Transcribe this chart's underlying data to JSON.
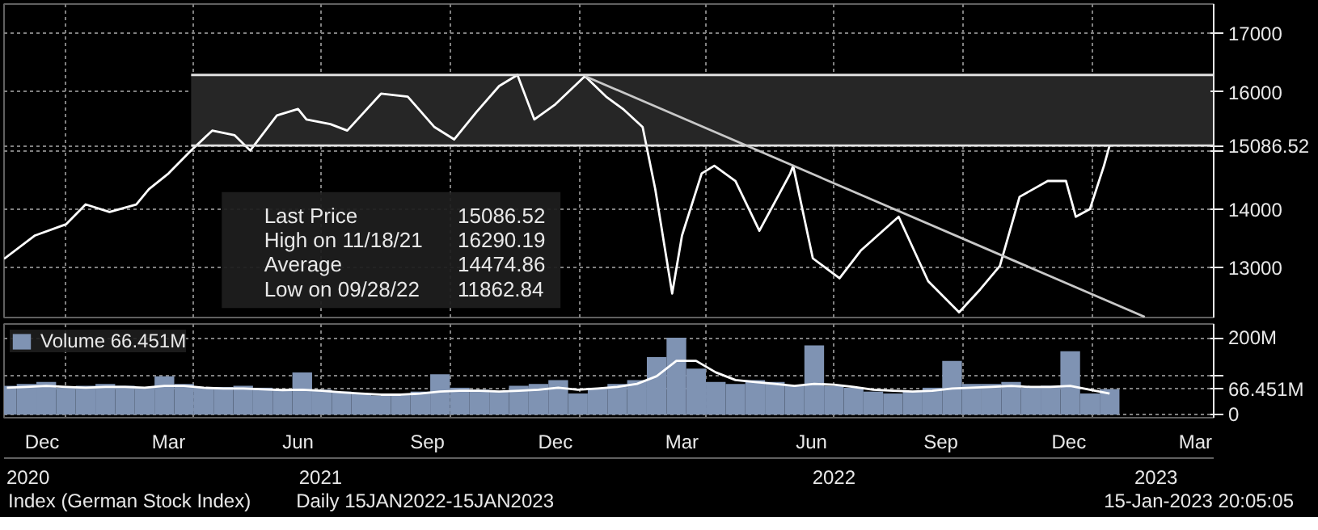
{
  "chart_data": [
    {
      "type": "line",
      "xlim": [
        "2020-11-18",
        "2023-03-28"
      ],
      "ylim": [
        12150,
        17500
      ],
      "yticks": [
        13000,
        14000,
        {
          "value": 15000,
          "label": null
        },
        {
          "value": 15086.52,
          "label": "15086.52"
        },
        16000,
        17000
      ],
      "xticks": [
        {
          "value": "2021-01-01",
          "label": null
        },
        {
          "value": "2021-04-01",
          "label": null
        },
        {
          "value": "2021-07-01",
          "label": null
        },
        {
          "value": "2021-10-01",
          "label": null
        },
        {
          "value": "2022-01-01",
          "label": null
        },
        {
          "value": "2022-04-01",
          "label": null
        },
        {
          "value": "2022-07-01",
          "label": null
        },
        {
          "value": "2022-10-01",
          "label": null
        },
        {
          "value": "2023-01-01",
          "label": null
        }
      ],
      "tick_labels": "y",
      "grid": true,
      "series": [
        {
          "color": "#ffffff",
          "x": [
            "2020-11-18",
            "2020-12-10",
            "2021-01-01",
            "2021-01-15",
            "2021-02-01",
            "2021-02-20",
            "2021-03-01",
            "2021-03-15",
            "2021-03-31",
            "2021-04-15",
            "2021-05-01",
            "2021-05-12",
            "2021-05-31",
            "2021-06-15",
            "2021-06-21",
            "2021-07-08",
            "2021-07-20",
            "2021-08-13",
            "2021-09-01",
            "2021-09-20",
            "2021-10-04",
            "2021-10-20",
            "2021-11-05",
            "2021-11-18",
            "2021-11-30",
            "2021-12-15",
            "2022-01-05",
            "2022-01-20",
            "2022-02-01",
            "2022-02-15",
            "2022-02-24",
            "2022-03-08",
            "2022-03-15",
            "2022-03-29",
            "2022-04-07",
            "2022-04-22",
            "2022-05-09",
            "2022-05-31",
            "2022-06-02",
            "2022-06-16",
            "2022-07-05",
            "2022-07-20",
            "2022-08-16",
            "2022-09-06",
            "2022-09-28",
            "2022-10-13",
            "2022-10-27",
            "2022-11-10",
            "2022-11-30",
            "2022-12-13",
            "2022-12-20",
            "2022-12-30",
            "2023-01-09",
            "2023-01-13"
          ],
          "values": [
            13150,
            13550,
            13740,
            14080,
            13950,
            14080,
            14340,
            14610,
            15000,
            15340,
            15260,
            15000,
            15600,
            15710,
            15530,
            15450,
            15340,
            15970,
            15920,
            15400,
            15190,
            15660,
            16100,
            16290,
            15530,
            15790,
            16270,
            15920,
            15710,
            15400,
            14340,
            12560,
            13550,
            14610,
            14740,
            14480,
            13630,
            14610,
            14740,
            13160,
            12820,
            13290,
            13870,
            12770,
            12240,
            12630,
            13030,
            14210,
            14480,
            14480,
            13870,
            14000,
            14740,
            15086.52
          ]
        },
        {
          "color": "#e0e0e0",
          "x": [
            "2021-03-31",
            "2023-03-28"
          ],
          "values": [
            16290.19,
            16290.19
          ],
          "lower": [
            15086.52,
            15086.52
          ],
          "upper": [
            16290.19,
            16290.19
          ]
        },
        {
          "color": "#e0e0e0",
          "x": [
            "2021-03-31",
            "2023-03-28"
          ],
          "values": [
            15086.52,
            15086.52
          ]
        },
        {
          "color": "#c8c8c8",
          "x": [
            "2022-01-05",
            "2023-02-07"
          ],
          "values": [
            16270,
            12160
          ]
        }
      ],
      "annotations": [
        "Last Price",
        "15086.52",
        "High on 11/18/21",
        "16290.19",
        "Average",
        "14474.86",
        "Low on 09/28/22",
        "11862.84"
      ]
    },
    {
      "type": "bar",
      "xlim": [
        "2020-11-18",
        "2023-03-28"
      ],
      "ylim": [
        -8,
        236
      ],
      "yticks": [
        {
          "value": 0,
          "label": "0"
        },
        {
          "value": 66.451,
          "label": "66.451M"
        },
        {
          "value": 100,
          "label": null
        },
        {
          "value": 200,
          "label": "200M"
        }
      ],
      "xticks": [
        {
          "value": "2021-01-01",
          "label": null
        },
        {
          "value": "2021-04-01",
          "label": null
        },
        {
          "value": "2021-07-01",
          "label": null
        },
        {
          "value": "2021-10-01",
          "label": null
        },
        {
          "value": "2022-01-01",
          "label": null
        },
        {
          "value": "2022-04-01",
          "label": null
        },
        {
          "value": "2022-07-01",
          "label": null
        },
        {
          "value": "2022-10-01",
          "label": null
        },
        {
          "value": "2023-01-01",
          "label": null
        },
        {
          "value": "2020-12-15",
          "label": "Dec"
        },
        {
          "value": "2021-03-15",
          "label": "Mar"
        },
        {
          "value": "2021-06-15",
          "label": "Jun"
        },
        {
          "value": "2021-09-15",
          "label": "Sep"
        },
        {
          "value": "2021-12-15",
          "label": "Dec"
        },
        {
          "value": "2022-03-15",
          "label": "Mar"
        },
        {
          "value": "2022-06-15",
          "label": "Jun"
        },
        {
          "value": "2022-09-15",
          "label": "Sep"
        },
        {
          "value": "2022-12-15",
          "label": "Dec"
        },
        {
          "value": "2023-03-15",
          "label": "Mar"
        }
      ],
      "x2lim": [
        "2020-11-18",
        "2023-03-28"
      ],
      "x2ticks": [
        {
          "value": "2020-12-05",
          "label": "2020"
        },
        {
          "value": "2021-07-01",
          "label": "2021"
        },
        {
          "value": "2022-07-01",
          "label": "2022"
        },
        {
          "value": "2023-02-15",
          "label": "2023"
        }
      ],
      "grid": true,
      "legend": "top left",
      "x": [
        "2020-11-20",
        "2020-12-04",
        "2020-12-18",
        "2021-01-01",
        "2021-01-15",
        "2021-01-29",
        "2021-02-12",
        "2021-02-26",
        "2021-03-12",
        "2021-03-26",
        "2021-04-09",
        "2021-04-23",
        "2021-05-07",
        "2021-05-21",
        "2021-06-04",
        "2021-06-18",
        "2021-07-02",
        "2021-07-16",
        "2021-07-30",
        "2021-08-13",
        "2021-08-27",
        "2021-09-10",
        "2021-09-24",
        "2021-10-08",
        "2021-10-22",
        "2021-11-05",
        "2021-11-19",
        "2021-12-03",
        "2021-12-17",
        "2021-12-31",
        "2022-01-14",
        "2022-01-28",
        "2022-02-11",
        "2022-02-25",
        "2022-03-11",
        "2022-03-25",
        "2022-04-08",
        "2022-04-22",
        "2022-05-06",
        "2022-05-20",
        "2022-06-03",
        "2022-06-17",
        "2022-07-01",
        "2022-07-15",
        "2022-07-29",
        "2022-08-12",
        "2022-08-26",
        "2022-09-09",
        "2022-09-23",
        "2022-10-07",
        "2022-10-21",
        "2022-11-04",
        "2022-11-18",
        "2022-12-02",
        "2022-12-16",
        "2022-12-30",
        "2023-01-13"
      ],
      "series": [
        {
          "name": "Volume 66.451M",
          "color": "#7f93b3",
          "values": [
            75,
            80,
            85,
            70,
            75,
            80,
            75,
            70,
            100,
            80,
            70,
            72,
            75,
            70,
            65,
            110,
            65,
            60,
            55,
            50,
            55,
            60,
            105,
            70,
            65,
            60,
            75,
            80,
            90,
            55,
            70,
            80,
            90,
            150,
            200,
            120,
            85,
            80,
            90,
            85,
            75,
            180,
            75,
            70,
            60,
            55,
            60,
            70,
            140,
            80,
            80,
            85,
            70,
            75,
            165,
            55,
            66.451
          ]
        },
        {
          "type": "line",
          "color": "#ffffff",
          "values": [
            70,
            72,
            75,
            72,
            70,
            72,
            72,
            70,
            75,
            75,
            70,
            68,
            68,
            66,
            64,
            65,
            62,
            58,
            55,
            52,
            52,
            55,
            60,
            62,
            62,
            60,
            62,
            65,
            70,
            65,
            68,
            72,
            80,
            100,
            140,
            140,
            110,
            90,
            85,
            80,
            75,
            80,
            78,
            72,
            65,
            62,
            60,
            62,
            68,
            70,
            72,
            75,
            72,
            72,
            75,
            65,
            55
          ]
        }
      ],
      "annotations": [
        "Index (German Stock Index)",
        "Daily 15JAN2022-15JAN2023",
        "15-Jan-2023 20:05:05"
      ]
    }
  ]
}
